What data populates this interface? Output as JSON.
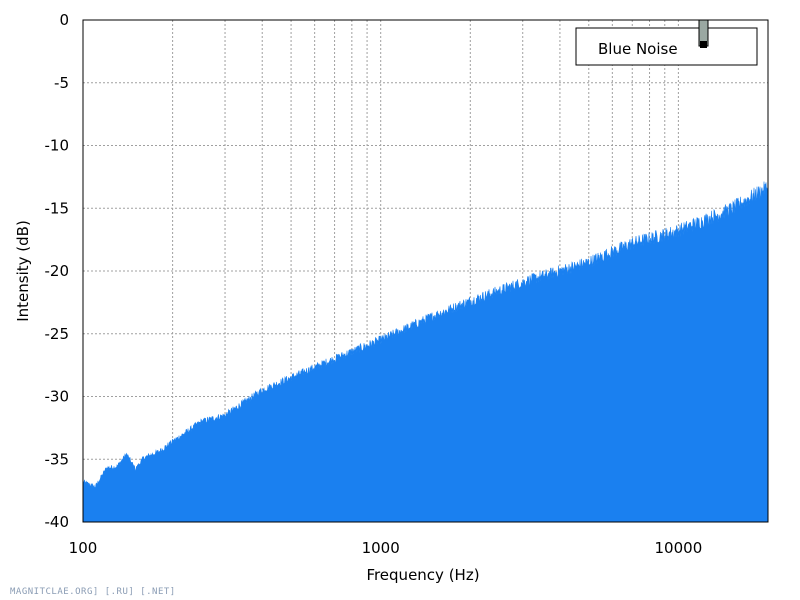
{
  "chart_data": {
    "type": "area",
    "xlabel": "Frequency (Hz)",
    "ylabel": "Intensity (dB)",
    "x_scale": "log",
    "xlim": [
      100,
      20000
    ],
    "ylim": [
      -40,
      0
    ],
    "x_tick_labels": [
      "100",
      "1000",
      "10000"
    ],
    "y_tick_labels": [
      "0",
      "-5",
      "-10",
      "-15",
      "-20",
      "-25",
      "-30",
      "-35",
      "-40"
    ],
    "grid": true,
    "legend_position": "top-right",
    "series": [
      {
        "name": "Blue Noise",
        "color": "#1a80f0",
        "x": [
          100,
          110,
          120,
          130,
          140,
          150,
          160,
          180,
          200,
          250,
          300,
          400,
          500,
          700,
          1000,
          1500,
          2000,
          3000,
          5000,
          7000,
          10000,
          15000,
          20000
        ],
        "y": [
          -36.8,
          -37.2,
          -35.7,
          -35.6,
          -34.6,
          -35.8,
          -34.9,
          -34.4,
          -33.6,
          -32.0,
          -31.5,
          -29.5,
          -28.5,
          -27.0,
          -25.5,
          -23.6,
          -22.4,
          -20.9,
          -19.3,
          -17.8,
          -16.8,
          -15.1,
          -13.3
        ]
      }
    ]
  },
  "watermark": "MAGNITCLAE.ORG] [.RU] [.NET]"
}
